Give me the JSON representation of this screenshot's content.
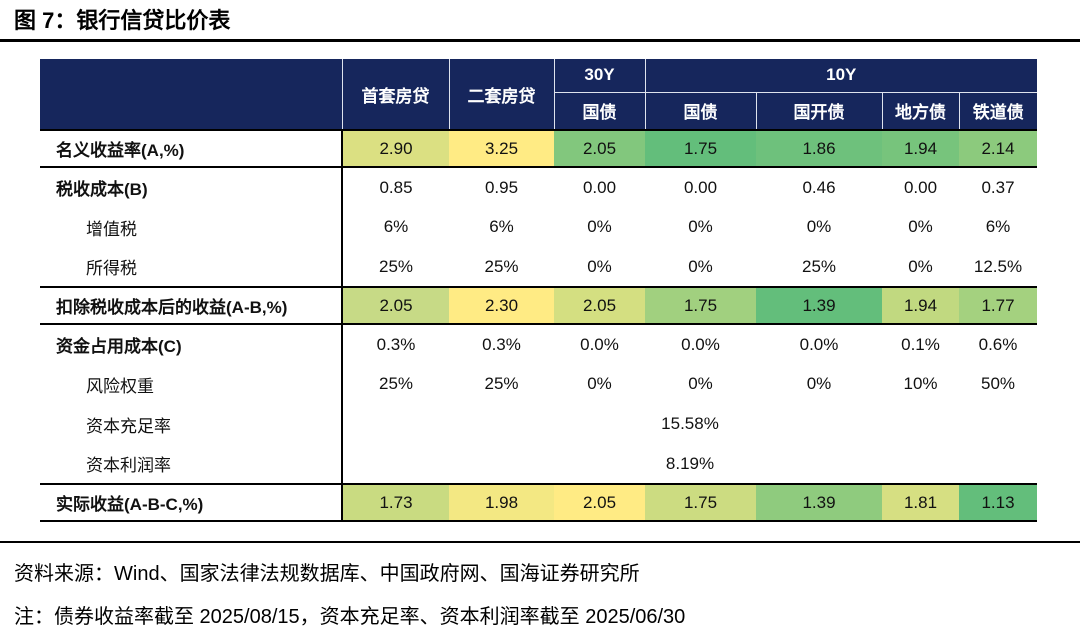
{
  "title": "图 7：银行信贷比价表",
  "colors": {
    "header_bg": "#16265C",
    "header_text": "#FFFFFF",
    "scale_low_green": "#63BE7B",
    "scale_high_yellow": "#FFEB84",
    "rule_black": "#000000"
  },
  "table": {
    "header": {
      "corner": "",
      "mortgage": [
        "首套房贷",
        "二套房贷"
      ],
      "tenor30": "30Y",
      "tenor10": "10Y",
      "subs": [
        "国债",
        "国债",
        "国开债",
        "地方债",
        "铁道债"
      ]
    },
    "rows": [
      {
        "label": "名义收益率(A,%)",
        "colored": true,
        "cells": [
          {
            "text": "2.90",
            "bg": "#DBE082"
          },
          {
            "text": "3.25",
            "bg": "#FFEB84"
          },
          {
            "text": "2.05",
            "bg": "#82C77D"
          },
          {
            "text": "1.75",
            "bg": "#63BE7B"
          },
          {
            "text": "1.86",
            "bg": "#6EC17C"
          },
          {
            "text": "1.94",
            "bg": "#77C47C"
          },
          {
            "text": "2.14",
            "bg": "#8CCA7D"
          }
        ]
      },
      {
        "label": "税收成本(B)",
        "group_start": true,
        "cells": [
          {
            "text": "0.85"
          },
          {
            "text": "0.95"
          },
          {
            "text": "0.00"
          },
          {
            "text": "0.00"
          },
          {
            "text": "0.46"
          },
          {
            "text": "0.00"
          },
          {
            "text": "0.37"
          }
        ]
      },
      {
        "label": "增值税",
        "indent": true,
        "cells": [
          {
            "text": "6%"
          },
          {
            "text": "6%"
          },
          {
            "text": "0%"
          },
          {
            "text": "0%"
          },
          {
            "text": "0%"
          },
          {
            "text": "0%"
          },
          {
            "text": "6%"
          }
        ]
      },
      {
        "label": "所得税",
        "indent": true,
        "cells": [
          {
            "text": "25%"
          },
          {
            "text": "25%"
          },
          {
            "text": "0%"
          },
          {
            "text": "0%"
          },
          {
            "text": "25%"
          },
          {
            "text": "0%"
          },
          {
            "text": "12.5%"
          }
        ]
      },
      {
        "label": "扣除税收成本后的收益(A-B,%)",
        "colored": true,
        "group_start": true,
        "cells": [
          {
            "text": "2.05",
            "bg": "#C7DA86"
          },
          {
            "text": "2.30",
            "bg": "#FFEB84"
          },
          {
            "text": "2.05",
            "bg": "#D4DF81"
          },
          {
            "text": "1.75",
            "bg": "#A1D07F"
          },
          {
            "text": "1.39",
            "bg": "#63BE7B"
          },
          {
            "text": "1.94",
            "bg": "#C1D980"
          },
          {
            "text": "1.77",
            "bg": "#A4D17F"
          }
        ]
      },
      {
        "label": "资金占用成本(C)",
        "group_start": true,
        "cells": [
          {
            "text": "0.3%"
          },
          {
            "text": "0.3%"
          },
          {
            "text": "0.0%"
          },
          {
            "text": "0.0%"
          },
          {
            "text": "0.0%"
          },
          {
            "text": "0.1%"
          },
          {
            "text": "0.6%"
          }
        ]
      },
      {
        "label": "风险权重",
        "indent": true,
        "cells": [
          {
            "text": "25%"
          },
          {
            "text": "25%"
          },
          {
            "text": "0%"
          },
          {
            "text": "0%"
          },
          {
            "text": "0%"
          },
          {
            "text": "10%"
          },
          {
            "text": "50%"
          }
        ]
      },
      {
        "label": "资本充足率",
        "indent": true,
        "cells": [
          {
            "text": "15.58%",
            "colspan": 7
          }
        ]
      },
      {
        "label": "资本利润率",
        "indent": true,
        "cells": [
          {
            "text": "8.19%",
            "colspan": 7
          }
        ]
      },
      {
        "label": "实际收益(A-B-C,%)",
        "colored": true,
        "group_start": true,
        "cells": [
          {
            "text": "1.73",
            "bg": "#C9DB81"
          },
          {
            "text": "1.98",
            "bg": "#F3E883"
          },
          {
            "text": "2.05",
            "bg": "#FFEB84"
          },
          {
            "text": "1.75",
            "bg": "#CCDC81"
          },
          {
            "text": "1.39",
            "bg": "#8FCB7E"
          },
          {
            "text": "1.81",
            "bg": "#D6DF82"
          },
          {
            "text": "1.13",
            "bg": "#63BE7B"
          }
        ]
      }
    ]
  },
  "footer": {
    "source": "资料来源：Wind、国家法律法规数据库、中国政府网、国海证券研究所",
    "note": "注：债券收益率截至 2025/08/15，资本充足率、资本利润率截至 2025/06/30"
  },
  "chart_data": {
    "type": "table",
    "title": "图 7：银行信贷比价表",
    "columns": [
      "",
      "首套房贷",
      "二套房贷",
      "30Y 国债",
      "10Y 国债",
      "10Y 国开债",
      "10Y 地方债",
      "10Y 铁道债"
    ],
    "rows": [
      [
        "名义收益率(A,%)",
        "2.90",
        "3.25",
        "2.05",
        "1.75",
        "1.86",
        "1.94",
        "2.14"
      ],
      [
        "税收成本(B)",
        "0.85",
        "0.95",
        "0.00",
        "0.00",
        "0.46",
        "0.00",
        "0.37"
      ],
      [
        "增值税",
        "6%",
        "6%",
        "0%",
        "0%",
        "0%",
        "0%",
        "6%"
      ],
      [
        "所得税",
        "25%",
        "25%",
        "0%",
        "0%",
        "25%",
        "0%",
        "12.5%"
      ],
      [
        "扣除税收成本后的收益(A-B,%)",
        "2.05",
        "2.30",
        "2.05",
        "1.75",
        "1.39",
        "1.94",
        "1.77"
      ],
      [
        "资金占用成本(C)",
        "0.3%",
        "0.3%",
        "0.0%",
        "0.0%",
        "0.0%",
        "0.1%",
        "0.6%"
      ],
      [
        "风险权重",
        "25%",
        "25%",
        "0%",
        "0%",
        "0%",
        "10%",
        "50%"
      ],
      [
        "资本充足率",
        "15.58%",
        "",
        "",
        "",
        "",
        "",
        ""
      ],
      [
        "资本利润率",
        "8.19%",
        "",
        "",
        "",
        "",
        "",
        ""
      ],
      [
        "实际收益(A-B-C,%)",
        "1.73",
        "1.98",
        "2.05",
        "1.75",
        "1.39",
        "1.81",
        "1.13"
      ]
    ],
    "notes": [
      "资料来源：Wind、国家法律法规数据库、中国政府网、国海证券研究所",
      "注：债券收益率截至 2025/08/15，资本充足率、资本利润率截至 2025/06/30"
    ],
    "color_scale": {
      "low": "#63BE7B",
      "high": "#FFEB84",
      "applied_rows": [
        0,
        4,
        9
      ]
    }
  }
}
